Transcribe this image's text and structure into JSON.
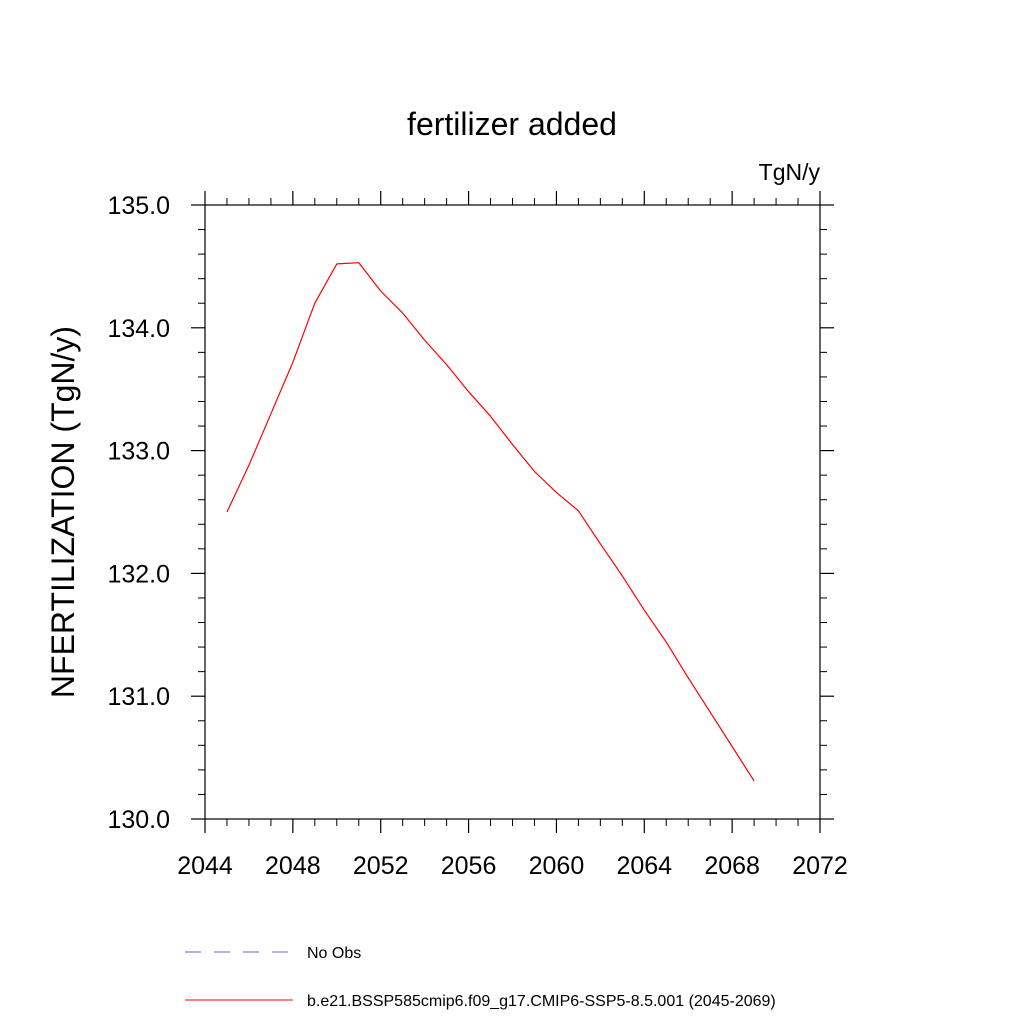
{
  "chart_data": {
    "type": "line",
    "title": "fertilizer added",
    "units_label": "TgN/y",
    "ylabel": "NFERTILIZATION  (TgN/y)",
    "xlabel": "",
    "xlim": [
      2044,
      2072
    ],
    "ylim": [
      130.0,
      135.0
    ],
    "x_ticks": [
      2044,
      2048,
      2052,
      2056,
      2060,
      2064,
      2068,
      2072
    ],
    "x_tick_labels": [
      "2044",
      "2048",
      "2052",
      "2056",
      "2060",
      "2064",
      "2068",
      "2072"
    ],
    "y_ticks": [
      130.0,
      131.0,
      132.0,
      133.0,
      134.0,
      135.0
    ],
    "y_tick_labels": [
      "130.0",
      "131.0",
      "132.0",
      "133.0",
      "134.0",
      "135.0"
    ],
    "grid": false,
    "legend_placement": "bottom",
    "series": [
      {
        "name": "b.e21.BSSP585cmip6.f09_g17.CMIP6-SSP5-8.5.001 (2045-2069)",
        "color": "#ff0000",
        "dash": "solid",
        "x": [
          2045,
          2046,
          2047,
          2048,
          2049,
          2050,
          2051,
          2052,
          2053,
          2054,
          2055,
          2056,
          2057,
          2058,
          2059,
          2060,
          2061,
          2062,
          2063,
          2064,
          2065,
          2066,
          2067,
          2068,
          2069
        ],
        "y": [
          132.5,
          132.88,
          133.3,
          133.72,
          134.2,
          134.52,
          134.53,
          134.3,
          134.12,
          133.9,
          133.7,
          133.48,
          133.28,
          133.05,
          132.83,
          132.66,
          132.51,
          132.24,
          131.98,
          131.7,
          131.44,
          131.15,
          130.87,
          130.59,
          130.31
        ]
      }
    ],
    "legend": [
      {
        "label": "No Obs",
        "color": "#6666cc",
        "dash": "dashed"
      },
      {
        "label": "b.e21.BSSP585cmip6.f09_g17.CMIP6-SSP5-8.5.001 (2045-2069)",
        "color": "#ff0000",
        "dash": "solid"
      }
    ]
  }
}
